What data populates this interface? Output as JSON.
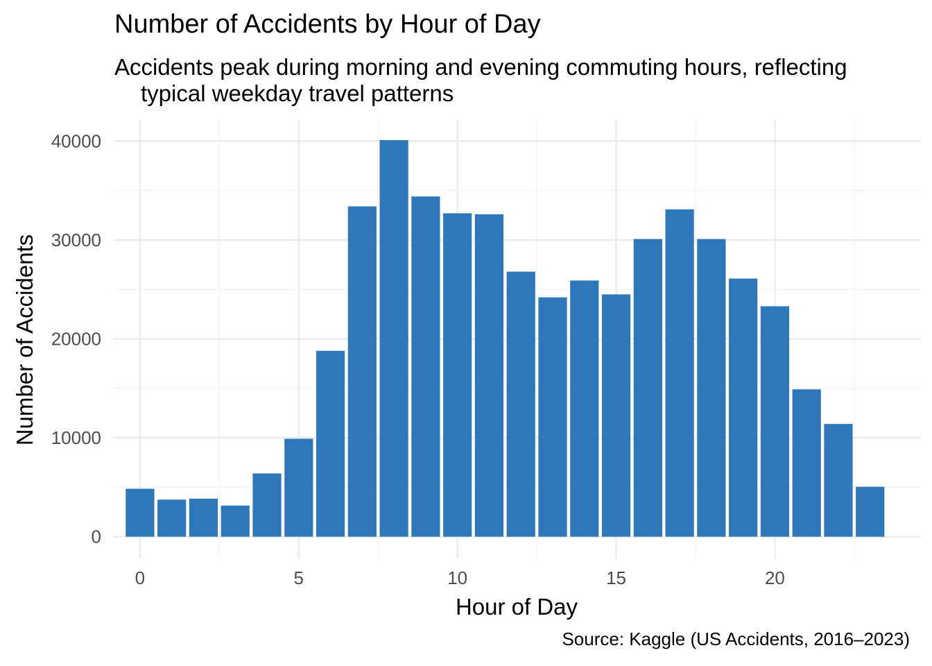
{
  "chart_data": {
    "type": "bar",
    "title": "Number of Accidents by Hour of Day",
    "subtitle_line1": "Accidents peak during morning and evening commuting hours, reflecting",
    "subtitle_line2": "typical weekday travel patterns",
    "caption": "Source: Kaggle (US Accidents, 2016–2023)",
    "xlabel": "Hour of Day",
    "ylabel": "Number of Accidents",
    "x": [
      0,
      1,
      2,
      3,
      4,
      5,
      6,
      7,
      8,
      9,
      10,
      11,
      12,
      13,
      14,
      15,
      16,
      17,
      18,
      19,
      20,
      21,
      22,
      23
    ],
    "values": [
      4850,
      3750,
      3850,
      3150,
      6400,
      9900,
      18800,
      33400,
      40100,
      34400,
      32700,
      32600,
      26800,
      24200,
      25900,
      24500,
      30100,
      33100,
      30100,
      26100,
      23300,
      14900,
      11400,
      5050
    ],
    "xticks": [
      0,
      5,
      10,
      15,
      20
    ],
    "yticks": [
      0,
      10000,
      20000,
      30000,
      40000
    ],
    "xlim": [
      -0.85,
      24.6
    ],
    "ylim": [
      -2200,
      42200
    ],
    "bar_color": "#2e78ba",
    "grid": true
  }
}
